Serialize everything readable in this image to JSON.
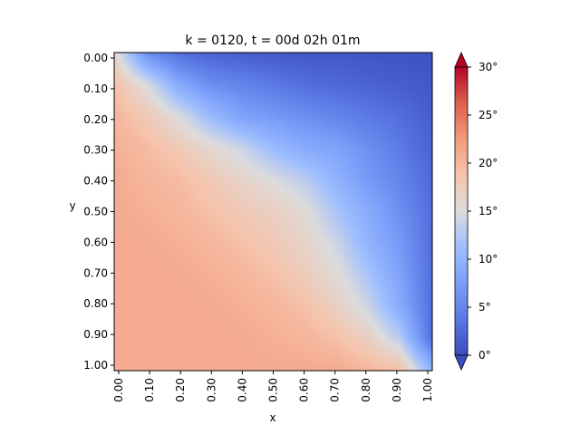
{
  "chart_data": {
    "type": "heatmap",
    "title": "k = 0120, t = 00d 02h 01m",
    "xlabel": "x",
    "ylabel": "y",
    "xlim": [
      0.0,
      1.0
    ],
    "ylim": [
      0.0,
      1.0
    ],
    "y_inverted": true,
    "x_ticks": [
      "0.00",
      "0.10",
      "0.20",
      "0.30",
      "0.40",
      "0.50",
      "0.60",
      "0.70",
      "0.80",
      "0.90",
      "1.00"
    ],
    "y_ticks": [
      "0.00",
      "0.10",
      "0.20",
      "0.30",
      "0.40",
      "0.50",
      "0.60",
      "0.70",
      "0.80",
      "0.90",
      "1.00"
    ],
    "colormap": "coolwarm",
    "colorbar": {
      "min": 0,
      "max": 30,
      "ticks": [
        "0°",
        "5°",
        "10°",
        "15°",
        "20°",
        "25°",
        "30°"
      ],
      "extend": "both"
    },
    "field_samples": {
      "note_rows_are_y": true,
      "x": [
        0.0,
        0.1,
        0.2,
        0.3,
        0.4,
        0.5,
        0.6,
        0.7,
        0.8,
        0.9,
        1.0
      ],
      "y": [
        0.0,
        0.1,
        0.2,
        0.3,
        0.4,
        0.5,
        0.6,
        0.7,
        0.8,
        0.9,
        1.0
      ],
      "values": [
        [
          16,
          6,
          3,
          2,
          1.5,
          1.2,
          1,
          1,
          0.8,
          0.6,
          0.5
        ],
        [
          19,
          15,
          9,
          6,
          5,
          4,
          3,
          2.5,
          2,
          1.5,
          1
        ],
        [
          20,
          18,
          15,
          11,
          8,
          7,
          6,
          5,
          4,
          3,
          1.5
        ],
        [
          20.5,
          19.5,
          18,
          16,
          14,
          11,
          9,
          8,
          6,
          4,
          2
        ],
        [
          21,
          20,
          19.5,
          18,
          16.5,
          15,
          13,
          10,
          7,
          5,
          2.5
        ],
        [
          21,
          20.5,
          20,
          19,
          18,
          17,
          15.5,
          12,
          9,
          6,
          3
        ],
        [
          21,
          21,
          20.5,
          20,
          19,
          18,
          16.5,
          14,
          10,
          7,
          3
        ],
        [
          21,
          21,
          21,
          20.5,
          20,
          19,
          17.5,
          15.5,
          12,
          8,
          3
        ],
        [
          21,
          21,
          21,
          21,
          20.5,
          20,
          19,
          17,
          14,
          9,
          3
        ],
        [
          21,
          21,
          21,
          21,
          21,
          20.5,
          20,
          19,
          17,
          13,
          3
        ],
        [
          21,
          21,
          21,
          21,
          21,
          21,
          21,
          21,
          20,
          19,
          10
        ]
      ]
    }
  }
}
